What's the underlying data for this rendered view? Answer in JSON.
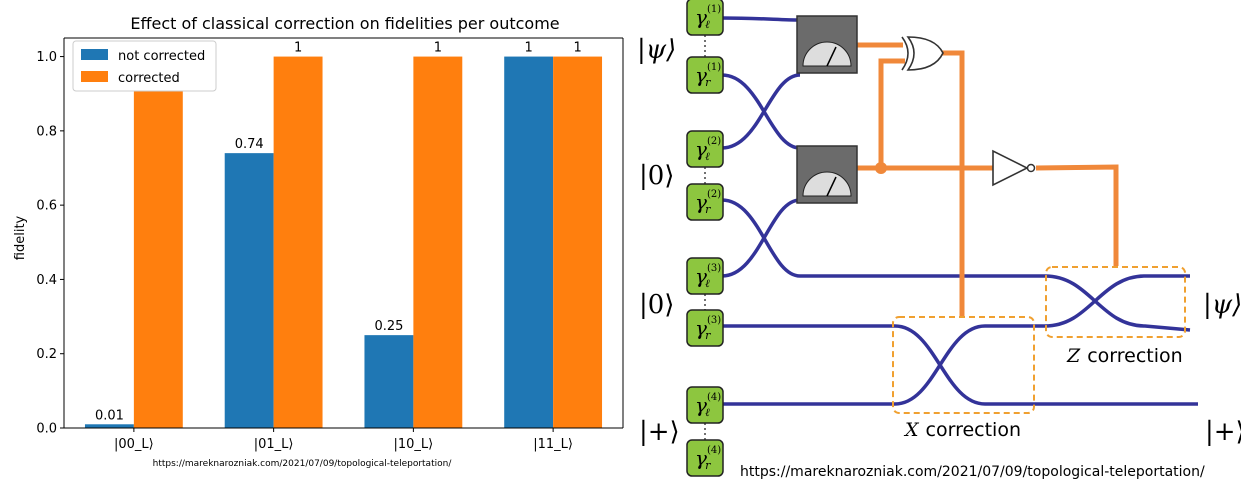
{
  "chart_data": {
    "type": "bar",
    "title": "Effect of classical correction on fidelities per outcome",
    "xlabel": "",
    "ylabel": "fidelity",
    "categories": [
      "|00_L⟩",
      "|01_L⟩",
      "|10_L⟩",
      "|11_L⟩"
    ],
    "series": [
      {
        "name": "not corrected",
        "color": "#1f77b4",
        "values": [
          0.01,
          0.74,
          0.25,
          1
        ],
        "labels": [
          "0.01",
          "0.74",
          "0.25",
          "1"
        ]
      },
      {
        "name": "corrected",
        "color": "#ff7f0e",
        "values": [
          1,
          1,
          1,
          1
        ],
        "labels": [
          "1",
          "1",
          "1",
          "1"
        ]
      }
    ],
    "ylim": [
      0,
      1.05
    ],
    "yticks": [
      "0.0",
      "0.2",
      "0.4",
      "0.6",
      "0.8",
      "1.0"
    ],
    "legend": "upper-left",
    "grid": false
  },
  "chart_credit": "https://mareknarozniak.com/2021/07/09/topological-teleportation/",
  "circuit": {
    "state_labels": [
      "|ψ⟩",
      "|0⟩",
      "|0⟩",
      "|+⟩"
    ],
    "output_labels": [
      "|ψ⟩",
      "|+⟩"
    ],
    "majorana_nodes": [
      {
        "sym": "γ",
        "sub": "ℓ",
        "sup": "(1)"
      },
      {
        "sym": "γ",
        "sub": "r",
        "sup": "(1)"
      },
      {
        "sym": "γ",
        "sub": "ℓ",
        "sup": "(2)"
      },
      {
        "sym": "γ",
        "sub": "r",
        "sup": "(2)"
      },
      {
        "sym": "γ",
        "sub": "ℓ",
        "sup": "(3)"
      },
      {
        "sym": "γ",
        "sub": "r",
        "sup": "(3)"
      },
      {
        "sym": "γ",
        "sub": "ℓ",
        "sup": "(4)"
      },
      {
        "sym": "γ",
        "sub": "r",
        "sup": "(4)"
      }
    ],
    "z_correction": {
      "sym": "Z",
      "text": "correction"
    },
    "x_correction": {
      "sym": "X",
      "text": "correction"
    },
    "credit": "https://mareknarozniak.com/2021/07/09/topological-teleportation/",
    "colors": {
      "wire": "#333399",
      "classical": "#f0883a",
      "node": "#8dc63f",
      "box": "#f0a030"
    }
  }
}
